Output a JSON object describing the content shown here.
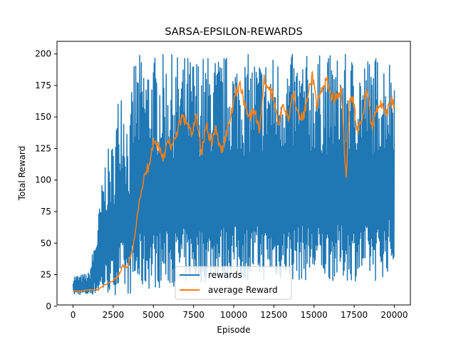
{
  "chart_data": {
    "type": "line",
    "title": "SARSA-EPSILON-REWARDS",
    "xlabel": "Episode",
    "ylabel": "Total Reward",
    "xlim": [
      -1000,
      21000
    ],
    "ylim": [
      1,
      210
    ],
    "xticks": [
      0,
      2500,
      5000,
      7500,
      10000,
      12500,
      15000,
      17500,
      20000
    ],
    "yticks": [
      0,
      25,
      50,
      75,
      100,
      125,
      150,
      175,
      200
    ],
    "grid": false,
    "legend": "bottom-center",
    "series": [
      {
        "name": "rewards",
        "color": "#1f77b4",
        "description_points": {
          "x": [
            0,
            500,
            1000,
            1500,
            2000,
            2500,
            3000,
            3500,
            3800,
            4000,
            4500,
            5000,
            6000,
            7000,
            8000,
            9000,
            10000,
            11000,
            12000,
            13000,
            14000,
            15000,
            16000,
            17000,
            18000,
            19000,
            20000
          ],
          "max": [
            25,
            25,
            27,
            65,
            120,
            132,
            193,
            140,
            200,
            200,
            200,
            200,
            200,
            200,
            200,
            200,
            200,
            200,
            200,
            200,
            200,
            200,
            200,
            200,
            200,
            200,
            200
          ],
          "min": [
            9,
            9,
            9,
            9,
            9,
            9,
            9,
            9,
            9,
            10,
            12,
            14,
            15,
            17,
            18,
            20,
            20,
            20,
            20,
            20,
            20,
            20,
            20,
            20,
            20,
            20,
            30
          ]
        }
      },
      {
        "name": "average Reward",
        "color": "#ff7f0e",
        "x": [
          0,
          500,
          1000,
          1500,
          2000,
          2500,
          2800,
          3100,
          3400,
          3700,
          3900,
          4100,
          4400,
          4700,
          5000,
          5300,
          5600,
          5900,
          6200,
          6500,
          6800,
          7100,
          7400,
          7700,
          8000,
          8300,
          8600,
          8900,
          9200,
          9500,
          9800,
          10100,
          10400,
          10700,
          11000,
          11300,
          11600,
          11900,
          12200,
          12500,
          12800,
          13100,
          13400,
          13700,
          14000,
          14300,
          14600,
          14900,
          15200,
          15500,
          15800,
          16100,
          16400,
          16700,
          17000,
          17200,
          17400,
          17700,
          18000,
          18300,
          18600,
          18900,
          19200,
          19500,
          19800,
          20000
        ],
        "y": [
          12,
          12,
          13,
          13,
          17,
          20,
          24,
          32,
          30,
          45,
          60,
          85,
          100,
          112,
          130,
          128,
          118,
          130,
          126,
          140,
          150,
          145,
          135,
          152,
          120,
          145,
          130,
          140,
          122,
          135,
          150,
          170,
          175,
          160,
          150,
          155,
          140,
          180,
          172,
          165,
          145,
          160,
          150,
          170,
          155,
          148,
          165,
          183,
          160,
          170,
          180,
          166,
          165,
          170,
          100,
          160,
          165,
          140,
          150,
          175,
          140,
          158,
          160,
          150,
          165,
          160
        ]
      }
    ]
  }
}
